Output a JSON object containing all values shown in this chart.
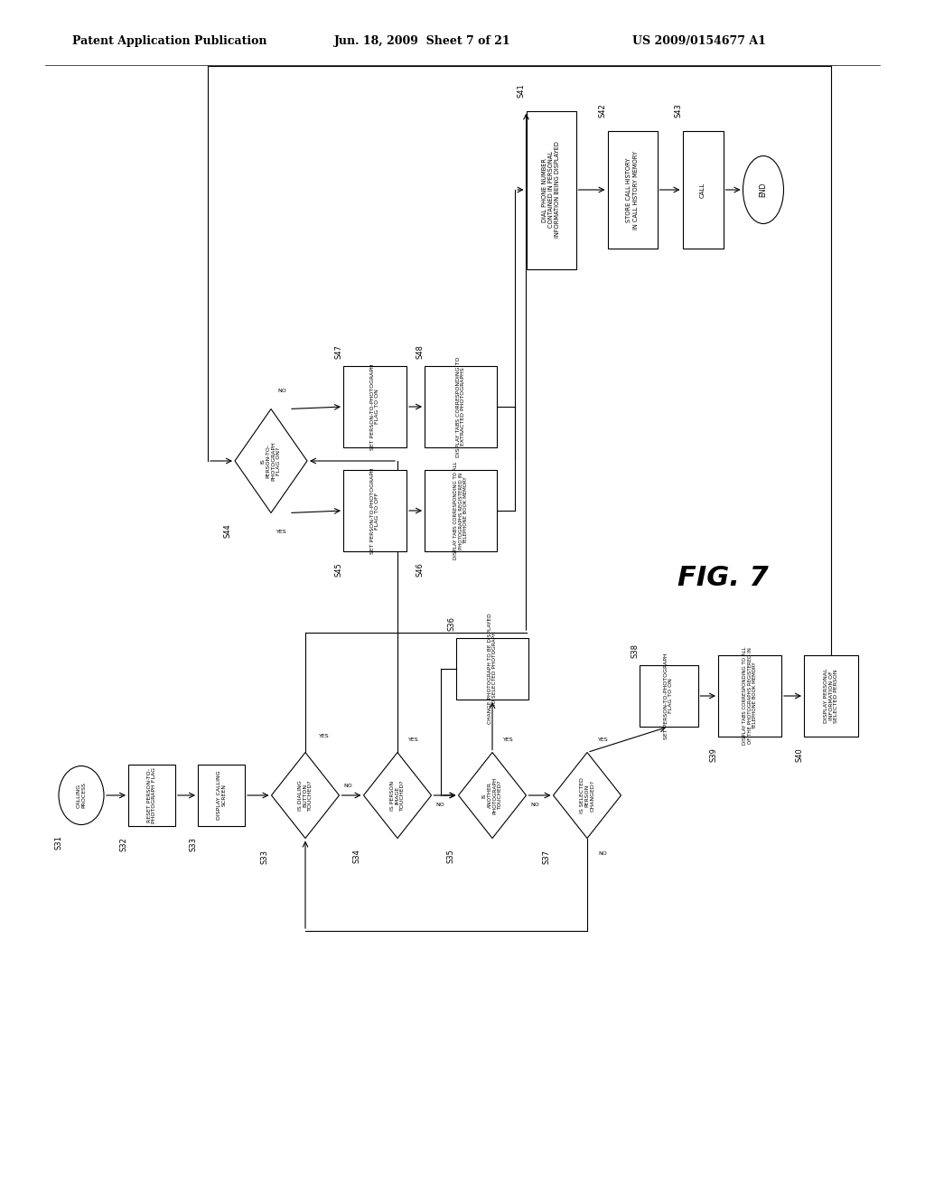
{
  "title_left": "Patent Application Publication",
  "title_mid": "Jun. 18, 2009  Sheet 7 of 21",
  "title_right": "US 2009/0154677 A1",
  "fig_label": "FIG. 7",
  "background": "#ffffff",
  "line_color": "#000000"
}
